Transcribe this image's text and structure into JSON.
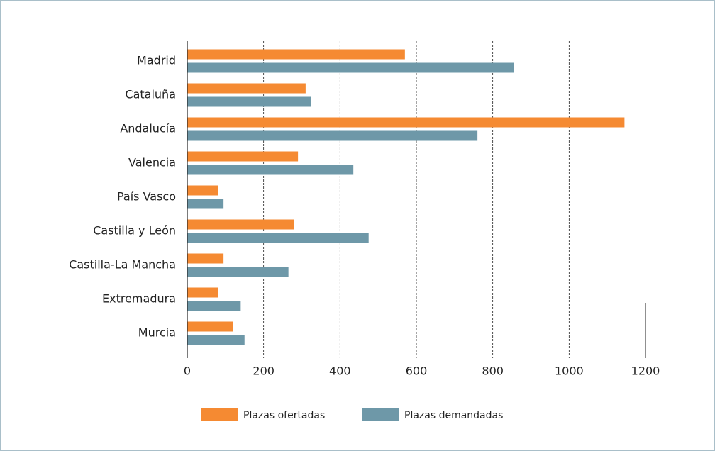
{
  "chart_data": {
    "type": "bar",
    "orientation": "horizontal",
    "categories": [
      "Madrid",
      "Cataluña",
      "Andalucía",
      "Valencia",
      "País Vasco",
      "Castilla y León",
      "Castilla-La Mancha",
      "Extremadura",
      "Murcia"
    ],
    "series": [
      {
        "name": "Plazas ofertadas",
        "color": "#f58a32",
        "values": [
          570,
          310,
          1145,
          290,
          80,
          280,
          95,
          80,
          120
        ]
      },
      {
        "name": "Plazas demandadas",
        "color": "#6e98a8",
        "values": [
          855,
          325,
          760,
          435,
          95,
          475,
          265,
          140,
          150
        ]
      }
    ],
    "xlim": [
      0,
      1200
    ],
    "xticks": [
      0,
      200,
      400,
      600,
      800,
      1000,
      1200
    ],
    "grid": true,
    "legend": "bottom"
  }
}
